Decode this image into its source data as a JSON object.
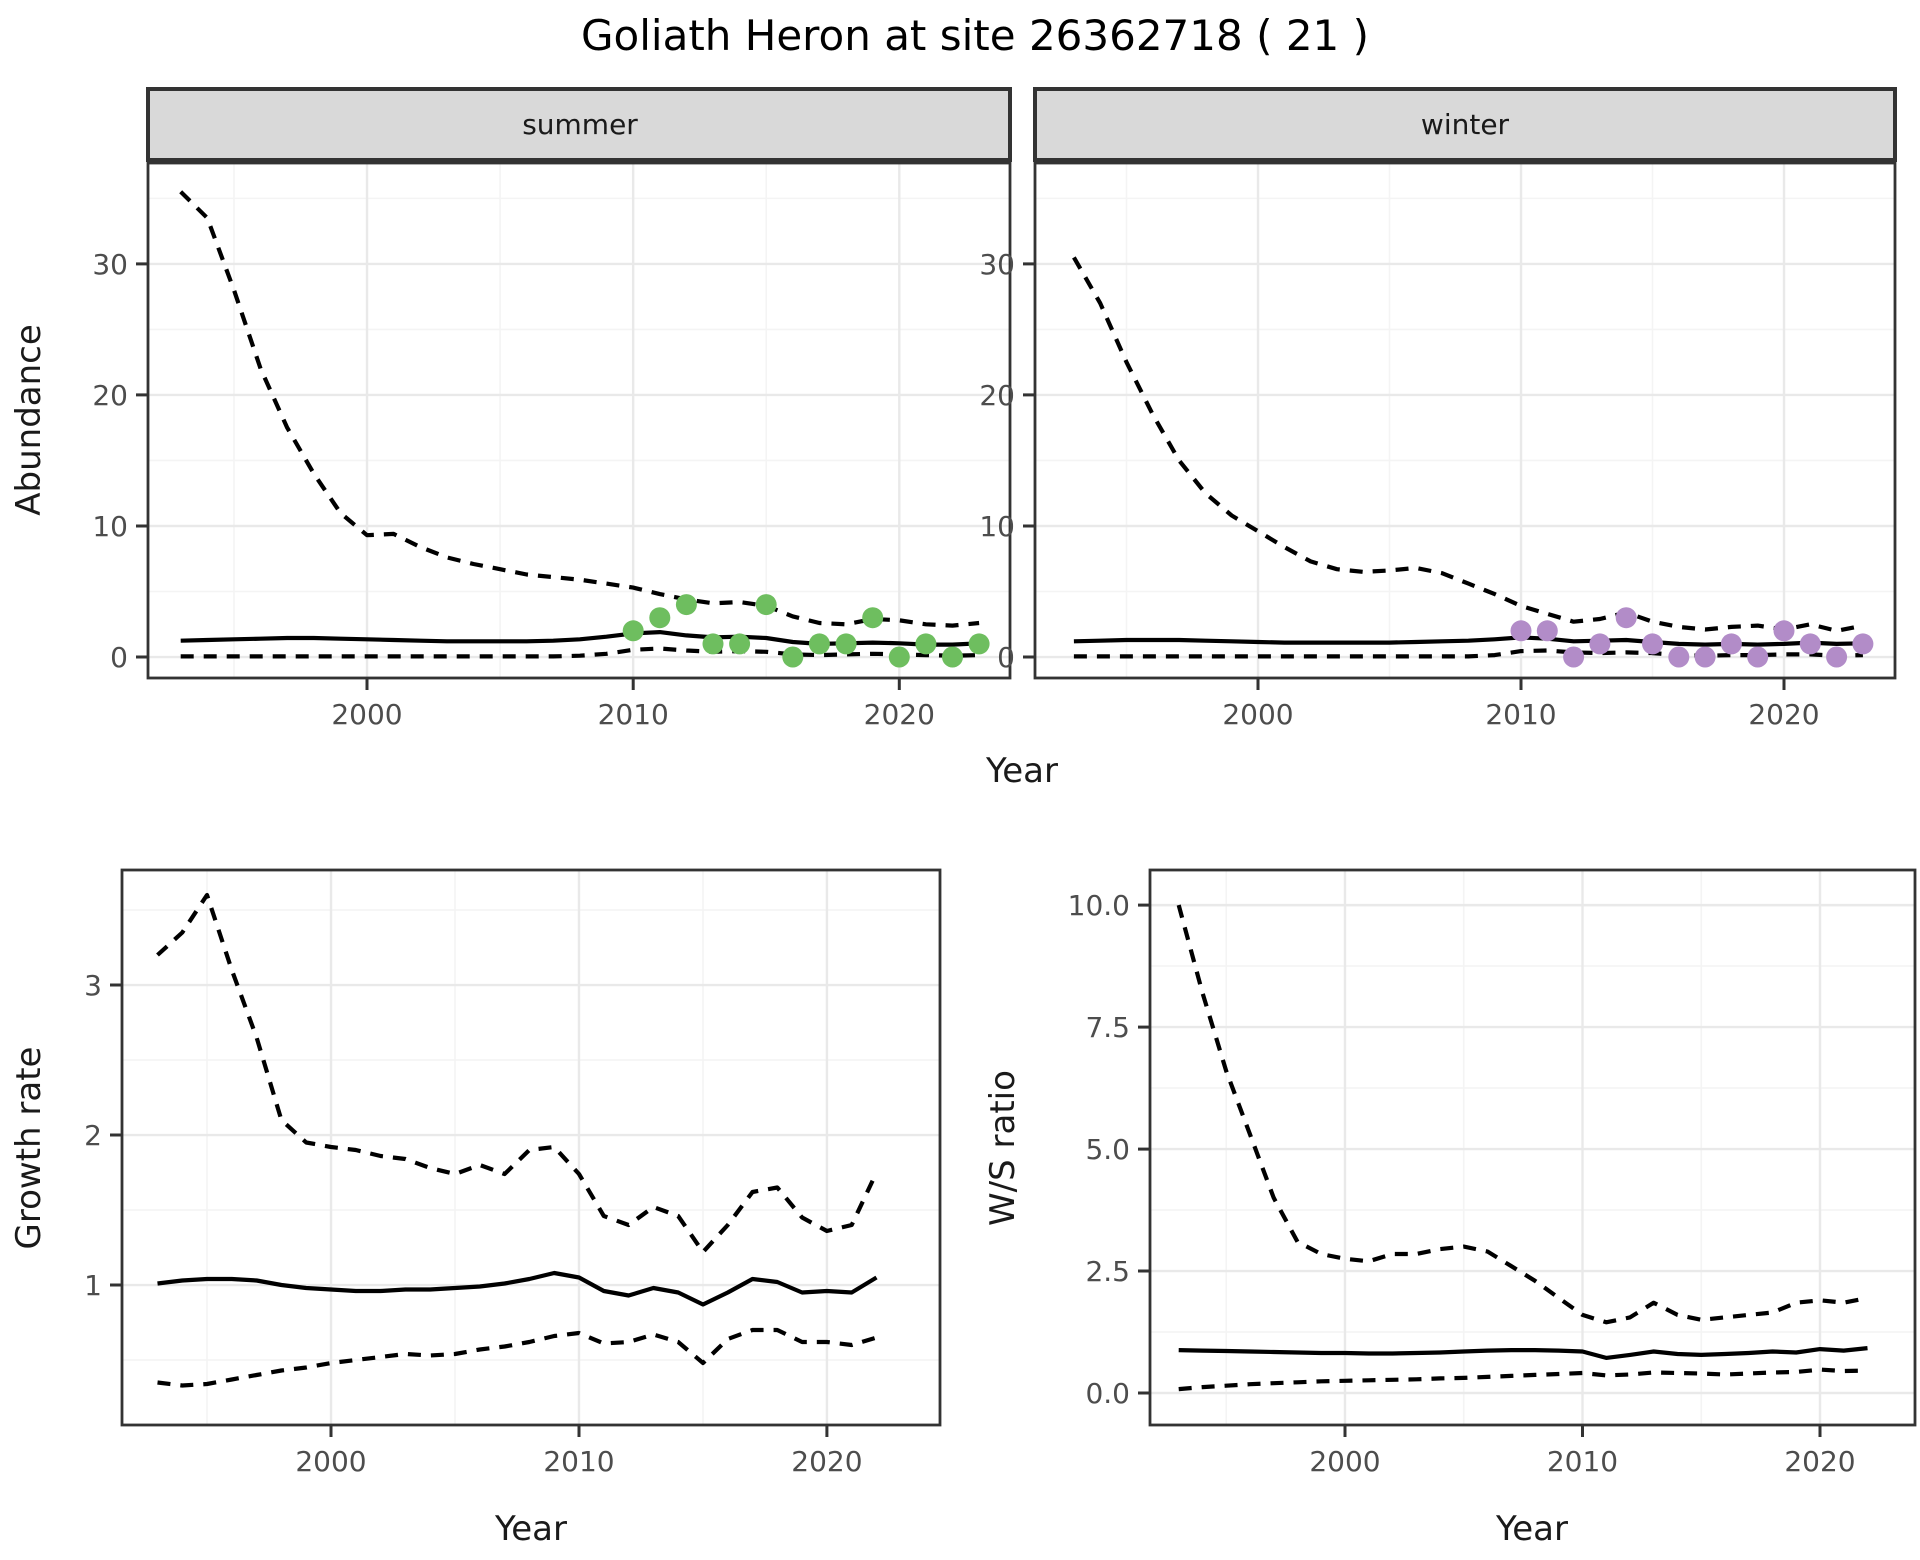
{
  "title": "Goliath Heron at site 26362718 ( 21 )",
  "axis_labels": {
    "abundance": "Abundance",
    "year": "Year",
    "growth_rate": "Growth rate",
    "ws_ratio": "W/S ratio"
  },
  "facets": {
    "summer": "summer",
    "winter": "winter"
  },
  "colors": {
    "summer_point": "#6ebe5f",
    "winter_point": "#b28cc8",
    "line": "#000000",
    "strip_bg": "#d9d9d9",
    "panel_border": "#333333",
    "grid_major": "#e9e9e9",
    "grid_minor": "#f4f4f4",
    "tick_label": "#4d4d4d"
  },
  "chart_data": [
    {
      "id": "abundance_summer",
      "type": "line",
      "facet": "summer",
      "xlabel": "Year",
      "ylabel": "Abundance",
      "xlim": [
        1991.77,
        2024.16
      ],
      "ylim": [
        -1.6,
        37.7
      ],
      "xticks": {
        "major": [
          2000,
          2010,
          2020
        ],
        "minor": [
          1995,
          2005,
          2015
        ],
        "labels": [
          "2000",
          "2010",
          "2020"
        ]
      },
      "yticks": {
        "major": [
          0,
          10,
          20,
          30
        ],
        "minor": [
          5,
          15,
          25,
          35
        ],
        "labels": [
          "0",
          "10",
          "20",
          "30"
        ]
      },
      "x": [
        1993,
        1994,
        1995,
        1996,
        1997,
        1998,
        1999,
        2000,
        2001,
        2002,
        2003,
        2004,
        2005,
        2006,
        2007,
        2008,
        2009,
        2010,
        2011,
        2012,
        2013,
        2014,
        2015,
        2016,
        2017,
        2018,
        2019,
        2020,
        2021,
        2022,
        2023
      ],
      "series": [
        {
          "name": "upper_95ci",
          "style": "dashed",
          "values": [
            35.5,
            33.5,
            28,
            22,
            17.5,
            14,
            11,
            9.3,
            9.4,
            8.4,
            7.6,
            7.1,
            6.7,
            6.3,
            6.1,
            5.9,
            5.6,
            5.3,
            4.8,
            4.4,
            4.1,
            4.2,
            3.9,
            3.1,
            2.6,
            2.5,
            2.9,
            2.8,
            2.5,
            2.4,
            2.6
          ]
        },
        {
          "name": "median_fit",
          "style": "solid",
          "values": [
            1.25,
            1.3,
            1.35,
            1.4,
            1.45,
            1.45,
            1.4,
            1.35,
            1.3,
            1.25,
            1.2,
            1.2,
            1.2,
            1.2,
            1.25,
            1.35,
            1.55,
            1.8,
            1.9,
            1.65,
            1.5,
            1.55,
            1.45,
            1.15,
            1.0,
            1.05,
            1.1,
            1.05,
            0.95,
            0.95,
            1.05
          ]
        },
        {
          "name": "lower_95ci",
          "style": "dashed",
          "values": [
            0.05,
            0.05,
            0.05,
            0.05,
            0.05,
            0.05,
            0.05,
            0.05,
            0.05,
            0.05,
            0.05,
            0.05,
            0.05,
            0.05,
            0.05,
            0.1,
            0.25,
            0.55,
            0.65,
            0.5,
            0.4,
            0.45,
            0.4,
            0.2,
            0.15,
            0.2,
            0.25,
            0.2,
            0.15,
            0.1,
            0.15
          ]
        }
      ],
      "points": {
        "name": "observed_counts",
        "color_key": "summer_point",
        "x": [
          2010,
          2011,
          2012,
          2013,
          2014,
          2015,
          2016,
          2017,
          2018,
          2019,
          2020,
          2021,
          2022,
          2023
        ],
        "y": [
          2,
          3,
          4,
          1,
          1,
          4,
          0,
          1,
          1,
          3,
          0,
          1,
          0,
          1
        ]
      }
    },
    {
      "id": "abundance_winter",
      "type": "line",
      "facet": "winter",
      "xlabel": "Year",
      "ylabel": "Abundance",
      "xlim": [
        1991.52,
        2024.22
      ],
      "ylim": [
        -1.6,
        37.7
      ],
      "xticks": {
        "major": [
          2000,
          2010,
          2020
        ],
        "minor": [
          1995,
          2005,
          2015
        ],
        "labels": [
          "2000",
          "2010",
          "2020"
        ]
      },
      "yticks": {
        "major": [
          0,
          10,
          20,
          30
        ],
        "minor": [
          5,
          15,
          25,
          35
        ],
        "labels": [
          "0",
          "10",
          "20",
          "30"
        ]
      },
      "x": [
        1993,
        1994,
        1995,
        1996,
        1997,
        1998,
        1999,
        2000,
        2001,
        2002,
        2003,
        2004,
        2005,
        2006,
        2007,
        2008,
        2009,
        2010,
        2011,
        2012,
        2013,
        2014,
        2015,
        2016,
        2017,
        2018,
        2019,
        2020,
        2021,
        2022,
        2023
      ],
      "series": [
        {
          "name": "upper_95ci",
          "style": "dashed",
          "values": [
            30.5,
            27,
            22.5,
            18.5,
            15,
            12.5,
            10.8,
            9.6,
            8.4,
            7.3,
            6.7,
            6.5,
            6.6,
            6.8,
            6.4,
            5.6,
            4.8,
            3.9,
            3.3,
            2.7,
            2.9,
            3.4,
            2.7,
            2.3,
            2.1,
            2.3,
            2.4,
            2.1,
            2.5,
            2.0,
            2.4
          ]
        },
        {
          "name": "median_fit",
          "style": "solid",
          "values": [
            1.2,
            1.25,
            1.3,
            1.3,
            1.3,
            1.25,
            1.2,
            1.15,
            1.1,
            1.1,
            1.1,
            1.1,
            1.1,
            1.15,
            1.2,
            1.25,
            1.35,
            1.5,
            1.4,
            1.2,
            1.25,
            1.3,
            1.15,
            1.0,
            0.95,
            1.0,
            0.95,
            1.0,
            1.1,
            1.0,
            1.05
          ]
        },
        {
          "name": "lower_95ci",
          "style": "dashed",
          "values": [
            0.05,
            0.05,
            0.05,
            0.05,
            0.05,
            0.05,
            0.05,
            0.05,
            0.05,
            0.05,
            0.05,
            0.05,
            0.05,
            0.05,
            0.05,
            0.05,
            0.15,
            0.45,
            0.5,
            0.35,
            0.3,
            0.35,
            0.3,
            0.15,
            0.1,
            0.15,
            0.15,
            0.2,
            0.2,
            0.1,
            0.15
          ]
        }
      ],
      "points": {
        "name": "observed_counts",
        "color_key": "winter_point",
        "x": [
          2010,
          2011,
          2012,
          2013,
          2014,
          2015,
          2016,
          2017,
          2018,
          2019,
          2020,
          2021,
          2022,
          2023
        ],
        "y": [
          2,
          2,
          0,
          1,
          3,
          1,
          0,
          0,
          1,
          0,
          2,
          1,
          0,
          1
        ]
      }
    },
    {
      "id": "growth_rate",
      "type": "line",
      "facet": null,
      "xlabel": "Year",
      "ylabel": "Growth rate",
      "xlim": [
        1991.57,
        2024.56
      ],
      "ylim": [
        0.067,
        3.767
      ],
      "xticks": {
        "major": [
          2000,
          2010,
          2020
        ],
        "minor": [
          1995,
          2005,
          2015
        ],
        "labels": [
          "2000",
          "2010",
          "2020"
        ]
      },
      "yticks": {
        "major": [
          1,
          2,
          3
        ],
        "minor": [
          0.5,
          1.5,
          2.5,
          3.5
        ],
        "labels": [
          "1",
          "2",
          "3"
        ]
      },
      "x": [
        1993,
        1994,
        1995,
        1996,
        1997,
        1998,
        1999,
        2000,
        2001,
        2002,
        2003,
        2004,
        2005,
        2006,
        2007,
        2008,
        2009,
        2010,
        2011,
        2012,
        2013,
        2014,
        2015,
        2016,
        2017,
        2018,
        2019,
        2020,
        2021,
        2022
      ],
      "series": [
        {
          "name": "upper_95ci",
          "style": "dashed",
          "values": [
            3.2,
            3.35,
            3.6,
            3.1,
            2.65,
            2.1,
            1.95,
            1.92,
            1.9,
            1.86,
            1.84,
            1.78,
            1.74,
            1.8,
            1.74,
            1.9,
            1.92,
            1.74,
            1.46,
            1.4,
            1.52,
            1.46,
            1.22,
            1.4,
            1.62,
            1.65,
            1.45,
            1.36,
            1.4,
            1.75
          ]
        },
        {
          "name": "median_fit",
          "style": "solid",
          "values": [
            1.01,
            1.03,
            1.04,
            1.04,
            1.03,
            1.0,
            0.98,
            0.97,
            0.96,
            0.96,
            0.97,
            0.97,
            0.98,
            0.99,
            1.01,
            1.04,
            1.08,
            1.05,
            0.96,
            0.93,
            0.98,
            0.95,
            0.87,
            0.95,
            1.04,
            1.02,
            0.95,
            0.96,
            0.95,
            1.05
          ]
        },
        {
          "name": "lower_95ci",
          "style": "dashed",
          "values": [
            0.35,
            0.33,
            0.34,
            0.37,
            0.4,
            0.43,
            0.45,
            0.48,
            0.5,
            0.52,
            0.54,
            0.53,
            0.54,
            0.57,
            0.59,
            0.62,
            0.66,
            0.68,
            0.61,
            0.62,
            0.67,
            0.62,
            0.48,
            0.64,
            0.7,
            0.7,
            0.62,
            0.62,
            0.6,
            0.65
          ]
        }
      ],
      "points": null
    },
    {
      "id": "ws_ratio",
      "type": "line",
      "facet": null,
      "xlabel": "Year",
      "ylabel": "W/S ratio",
      "xlim": [
        1991.79,
        2024.0
      ],
      "ylim": [
        -0.656,
        10.72
      ],
      "xticks": {
        "major": [
          2000,
          2010,
          2020
        ],
        "minor": [
          1995,
          2005,
          2015
        ],
        "labels": [
          "2000",
          "2010",
          "2020"
        ]
      },
      "yticks": {
        "major": [
          0,
          2.5,
          5,
          7.5,
          10
        ],
        "minor": [
          1.25,
          3.75,
          6.25,
          8.75
        ],
        "labels": [
          "0.0",
          "2.5",
          "5.0",
          "7.5",
          "10.0"
        ]
      },
      "x": [
        1993,
        1994,
        1995,
        1996,
        1997,
        1998,
        1999,
        2000,
        2001,
        2002,
        2003,
        2004,
        2005,
        2006,
        2007,
        2008,
        2009,
        2010,
        2011,
        2012,
        2013,
        2014,
        2015,
        2016,
        2017,
        2018,
        2019,
        2020,
        2021,
        2022
      ],
      "series": [
        {
          "name": "upper_95ci",
          "style": "dashed",
          "values": [
            10.0,
            8.2,
            6.6,
            5.3,
            4.0,
            3.1,
            2.85,
            2.75,
            2.7,
            2.85,
            2.85,
            2.95,
            3.0,
            2.9,
            2.6,
            2.3,
            1.95,
            1.6,
            1.45,
            1.55,
            1.85,
            1.6,
            1.5,
            1.55,
            1.6,
            1.65,
            1.85,
            1.9,
            1.85,
            1.95
          ]
        },
        {
          "name": "median_fit",
          "style": "solid",
          "values": [
            0.88,
            0.87,
            0.86,
            0.85,
            0.84,
            0.83,
            0.82,
            0.82,
            0.81,
            0.81,
            0.82,
            0.83,
            0.85,
            0.87,
            0.88,
            0.88,
            0.87,
            0.85,
            0.72,
            0.78,
            0.85,
            0.8,
            0.78,
            0.8,
            0.82,
            0.85,
            0.83,
            0.9,
            0.87,
            0.92
          ]
        },
        {
          "name": "lower_95ci",
          "style": "dashed",
          "values": [
            0.08,
            0.12,
            0.15,
            0.18,
            0.2,
            0.22,
            0.24,
            0.25,
            0.26,
            0.27,
            0.28,
            0.3,
            0.31,
            0.33,
            0.35,
            0.37,
            0.39,
            0.41,
            0.36,
            0.38,
            0.42,
            0.41,
            0.4,
            0.38,
            0.4,
            0.42,
            0.43,
            0.48,
            0.45,
            0.46
          ]
        }
      ],
      "points": null
    }
  ]
}
